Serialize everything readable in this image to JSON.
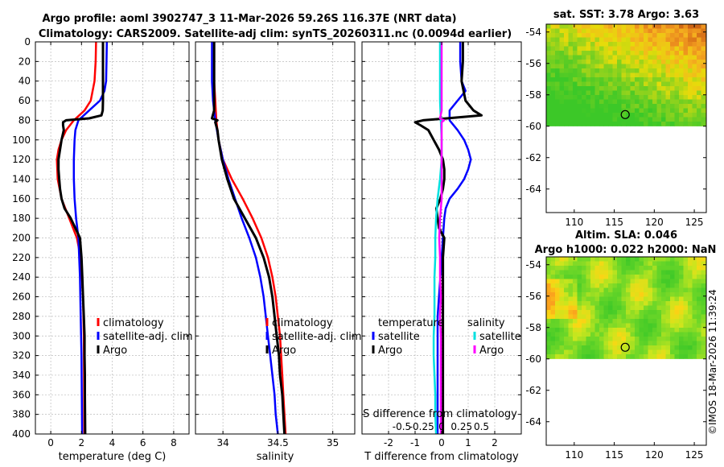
{
  "title": {
    "line1": "Argo profile: aoml 3902747_3 11-Mar-2026 59.26S 116.37E (NRT data)",
    "line2": "Climatology: CARS2009. Satellite-adj clim: synTS_20260311.nc (0.0094d earlier)"
  },
  "watermark": "©IMOS 18-Mar-2026 11:39:24",
  "colors": {
    "climatology": "#ff0000",
    "satellite": "#0000ff",
    "argo": "#000000",
    "sal_sat": "#00e0e0",
    "sal_argo": "#ff00ff"
  },
  "chart_data": [
    {
      "id": "temperature",
      "type": "line",
      "xlabel": "temperature (deg C)",
      "xlim": [
        -1,
        9
      ],
      "ylim": [
        400,
        0
      ],
      "xticks": [
        0,
        2,
        4,
        6,
        8
      ],
      "xtick_labels": [
        "0",
        "2",
        "4",
        "6",
        "8"
      ],
      "yticks": [
        0,
        20,
        40,
        60,
        80,
        100,
        120,
        140,
        160,
        180,
        200,
        220,
        240,
        260,
        280,
        300,
        320,
        340,
        360,
        380,
        400
      ],
      "ytick_labels": [
        "0",
        "20",
        "40",
        "60",
        "80",
        "100",
        "120",
        "140",
        "160",
        "180",
        "200",
        "220",
        "240",
        "260",
        "280",
        "300",
        "320",
        "340",
        "360",
        "380",
        "400"
      ],
      "legend": [
        "climatology",
        "satellite-adj. clim",
        "Argo"
      ],
      "series": [
        {
          "name": "climatology",
          "color": "#ff0000",
          "width": 2.5,
          "depth": [
            0,
            20,
            40,
            60,
            70,
            80,
            90,
            100,
            110,
            120,
            140,
            160,
            180,
            200,
            220,
            260,
            300,
            340,
            380,
            400
          ],
          "values": [
            2.95,
            2.92,
            2.85,
            2.6,
            2.2,
            1.5,
            1.0,
            0.7,
            0.5,
            0.4,
            0.45,
            0.7,
            1.2,
            1.7,
            1.95,
            2.1,
            2.15,
            2.17,
            2.18,
            2.19
          ]
        },
        {
          "name": "satellite-adj. clim",
          "color": "#0000ff",
          "width": 2.5,
          "depth": [
            0,
            20,
            40,
            50,
            60,
            70,
            80,
            90,
            100,
            120,
            140,
            160,
            180,
            200,
            240,
            280,
            320,
            360,
            400
          ],
          "values": [
            3.65,
            3.63,
            3.6,
            3.5,
            3.2,
            2.5,
            1.8,
            1.6,
            1.55,
            1.5,
            1.5,
            1.55,
            1.65,
            1.8,
            1.9,
            1.95,
            2.0,
            2.02,
            2.04
          ]
        },
        {
          "name": "Argo",
          "color": "#000000",
          "width": 3,
          "depth": [
            0,
            20,
            40,
            60,
            70,
            75,
            78,
            80,
            82,
            85,
            90,
            100,
            110,
            120,
            130,
            140,
            150,
            160,
            170,
            180,
            190,
            200,
            220,
            240,
            260,
            280,
            300,
            320,
            340,
            360,
            380,
            400
          ],
          "values": [
            3.4,
            3.4,
            3.4,
            3.4,
            3.38,
            3.3,
            2.5,
            1.0,
            0.8,
            0.8,
            0.85,
            0.7,
            0.6,
            0.5,
            0.5,
            0.55,
            0.6,
            0.7,
            0.9,
            1.3,
            1.6,
            1.9,
            2.0,
            2.05,
            2.1,
            2.15,
            2.2,
            2.2,
            2.22,
            2.22,
            2.23,
            2.24
          ]
        }
      ]
    },
    {
      "id": "salinity",
      "type": "line",
      "xlabel": "salinity",
      "xlim": [
        33.75,
        35.2
      ],
      "ylim": [
        400,
        0
      ],
      "xticks": [
        34,
        34.5,
        35
      ],
      "xtick_labels": [
        "34",
        "34.5",
        "35"
      ],
      "legend": [
        "climatology",
        "satellite-adj. clim",
        "Argo"
      ],
      "series": [
        {
          "name": "climatology",
          "color": "#ff0000",
          "width": 2.5,
          "depth": [
            0,
            20,
            40,
            60,
            80,
            100,
            120,
            140,
            160,
            180,
            200,
            220,
            240,
            260,
            280,
            300,
            320,
            340,
            360,
            380,
            400
          ],
          "values": [
            33.92,
            33.92,
            33.92,
            33.93,
            33.94,
            33.96,
            34.0,
            34.08,
            34.18,
            34.27,
            34.35,
            34.41,
            34.45,
            34.48,
            34.5,
            34.52,
            34.53,
            34.54,
            34.55,
            34.56,
            34.57
          ]
        },
        {
          "name": "satellite-adj. clim",
          "color": "#0000ff",
          "width": 2.5,
          "depth": [
            0,
            20,
            40,
            60,
            80,
            100,
            120,
            140,
            160,
            180,
            200,
            220,
            240,
            260,
            280,
            300,
            320,
            340,
            360,
            380,
            400
          ],
          "values": [
            33.9,
            33.9,
            33.9,
            33.91,
            33.93,
            33.96,
            34.0,
            34.05,
            34.11,
            34.17,
            34.24,
            34.3,
            34.34,
            34.37,
            34.39,
            34.41,
            34.43,
            34.45,
            34.47,
            34.48,
            34.5
          ]
        },
        {
          "name": "Argo",
          "color": "#000000",
          "width": 3,
          "depth": [
            0,
            20,
            40,
            60,
            70,
            78,
            80,
            82,
            90,
            100,
            120,
            140,
            160,
            180,
            200,
            220,
            240,
            260,
            280,
            300,
            320,
            340,
            360,
            380,
            400
          ],
          "values": [
            33.92,
            33.92,
            33.92,
            33.92,
            33.92,
            33.9,
            33.95,
            33.93,
            33.95,
            33.96,
            33.99,
            34.04,
            34.1,
            34.2,
            34.3,
            34.37,
            34.42,
            34.45,
            34.47,
            34.49,
            34.51,
            34.52,
            34.54,
            34.55,
            34.56
          ]
        }
      ]
    },
    {
      "id": "difference",
      "type": "line",
      "xlabel": "T difference from climatology",
      "xlabel_top": "S difference from climatology",
      "xlim": [
        -3,
        3
      ],
      "ylim": [
        400,
        0
      ],
      "xticks": [
        -2,
        -1,
        0,
        1,
        2
      ],
      "xtick_labels": [
        "-2",
        "-1",
        "0",
        "1",
        "2"
      ],
      "top_ticks": [
        -0.5,
        -0.25,
        0,
        0.25,
        0.5
      ],
      "top_tick_labels": [
        "-0.5",
        "-0.25",
        "0",
        "0.25",
        "0.5"
      ],
      "top_xlim": [
        -1,
        1
      ],
      "legend_temperature_title": "temperature",
      "legend_salinity_title": "salinity",
      "legend_temperature": [
        "satellite",
        "Argo"
      ],
      "legend_salinity": [
        "satellite",
        "Argo"
      ],
      "series": [
        {
          "name": "T satellite",
          "color": "#0000ff",
          "width": 2.5,
          "depth": [
            0,
            20,
            40,
            50,
            60,
            70,
            80,
            90,
            100,
            110,
            120,
            130,
            140,
            150,
            160,
            170,
            180,
            200,
            240,
            280,
            320,
            360,
            400
          ],
          "values": [
            0.7,
            0.7,
            0.75,
            0.9,
            0.6,
            0.3,
            0.3,
            0.6,
            0.85,
            1.0,
            1.1,
            1.0,
            0.85,
            0.6,
            0.3,
            0.15,
            0.1,
            0.05,
            -0.05,
            -0.15,
            -0.15,
            -0.15,
            -0.15
          ]
        },
        {
          "name": "T Argo",
          "color": "#000000",
          "width": 3,
          "depth": [
            0,
            20,
            40,
            60,
            70,
            75,
            78,
            80,
            82,
            85,
            90,
            100,
            110,
            120,
            130,
            140,
            150,
            160,
            170,
            180,
            190,
            200,
            220,
            260,
            300,
            340,
            380,
            400
          ],
          "values": [
            0.8,
            0.8,
            0.75,
            0.9,
            1.2,
            1.5,
            0.2,
            -0.7,
            -1.0,
            -0.8,
            -0.5,
            -0.3,
            -0.1,
            0.05,
            0.1,
            0.1,
            0.05,
            -0.05,
            -0.2,
            -0.15,
            -0.1,
            0.1,
            0.05,
            0.05,
            0.05,
            0.05,
            0.05,
            0.05
          ]
        },
        {
          "name": "S satellite",
          "color": "#00e0e0",
          "width": 2.5,
          "depth": [
            0,
            20,
            40,
            60,
            80,
            100,
            120,
            140,
            160,
            180,
            200,
            220,
            240,
            260,
            280,
            300,
            320,
            340,
            360,
            380,
            400
          ],
          "values": [
            -0.02,
            -0.02,
            -0.02,
            -0.02,
            -0.01,
            0.0,
            0.0,
            -0.02,
            -0.05,
            -0.07,
            -0.08,
            -0.08,
            -0.09,
            -0.09,
            -0.09,
            -0.1,
            -0.1,
            -0.09,
            -0.08,
            -0.08,
            -0.07
          ]
        },
        {
          "name": "S Argo",
          "color": "#ff00ff",
          "width": 2.5,
          "depth": [
            0,
            20,
            40,
            60,
            70,
            78,
            80,
            82,
            90,
            100,
            120,
            140,
            160,
            180,
            200,
            220,
            240,
            260,
            280,
            300,
            320,
            340,
            360,
            380,
            400
          ],
          "values": [
            0.0,
            0.0,
            0.0,
            0.0,
            0.0,
            -0.02,
            0.03,
            0.0,
            0.0,
            0.0,
            0.0,
            0.0,
            0.0,
            -0.02,
            -0.03,
            -0.02,
            -0.02,
            -0.01,
            -0.02,
            -0.01,
            -0.01,
            -0.01,
            -0.01,
            -0.01,
            -0.01
          ]
        }
      ]
    },
    {
      "id": "sst_map",
      "type": "heatmap",
      "title": "sat. SST: 3.78 Argo: 3.63",
      "xlim": [
        106.5,
        126.5
      ],
      "ylim": [
        -65.5,
        -53.5
      ],
      "data_ylim": [
        -60,
        -53.5
      ],
      "xticks": [
        110,
        115,
        120,
        125
      ],
      "xtick_labels": [
        "110",
        "115",
        "120",
        "125"
      ],
      "yticks": [
        -54,
        -56,
        -58,
        -60,
        -62,
        -64
      ],
      "ytick_labels": [
        "-54",
        "-56",
        "-58",
        "-60",
        "-62",
        "-64"
      ],
      "marker": {
        "lon": 116.37,
        "lat": -59.26
      }
    },
    {
      "id": "sla_map",
      "type": "heatmap",
      "title": "Altim. SLA: 0.046",
      "subtitle": "Argo h1000: 0.022 h2000: NaN",
      "xlim": [
        106.5,
        126.5
      ],
      "ylim": [
        -65.5,
        -53.5
      ],
      "data_ylim": [
        -60,
        -53.5
      ],
      "xticks": [
        110,
        115,
        120,
        125
      ],
      "xtick_labels": [
        "110",
        "115",
        "120",
        "125"
      ],
      "yticks": [
        -54,
        -56,
        -58,
        -60,
        -62,
        -64
      ],
      "ytick_labels": [
        "-54",
        "-56",
        "-58",
        "-60",
        "-62",
        "-64"
      ],
      "marker": {
        "lon": 116.37,
        "lat": -59.26
      }
    }
  ]
}
